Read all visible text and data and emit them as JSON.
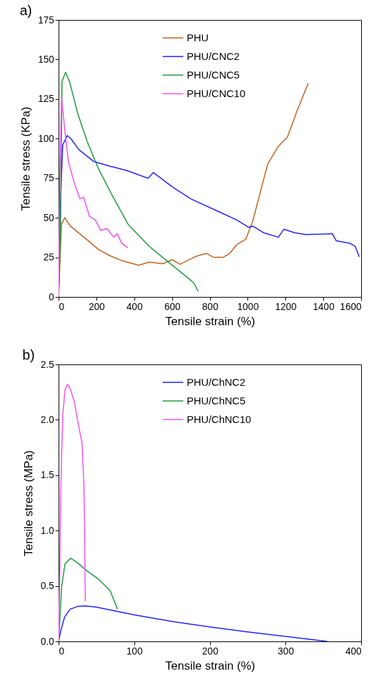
{
  "chart_data": [
    {
      "type": "line",
      "title": "a)",
      "xlabel": "Tensile strain (%)",
      "ylabel": "Tensile stress (KPa)",
      "xlim": [
        0,
        1600
      ],
      "xticks": [
        0,
        200,
        400,
        600,
        800,
        1000,
        1200,
        1400,
        1600
      ],
      "ylim": [
        0,
        175
      ],
      "yticks": [
        0,
        25,
        50,
        75,
        100,
        125,
        150,
        175
      ],
      "grid": false,
      "legend": "top",
      "line_style": "solid",
      "marker": "none",
      "series": [
        {
          "name": "PHU",
          "color": "#c0601c",
          "x": [
            0,
            15,
            33,
            60,
            162,
            211,
            272,
            333,
            424,
            479,
            552,
            601,
            643,
            698,
            735,
            783,
            820,
            869,
            905,
            942,
            990,
            1027,
            1064,
            1106,
            1161,
            1210,
            1247,
            1259,
            1320
          ],
          "values": [
            0,
            46,
            50,
            45,
            35,
            30,
            26,
            23,
            20,
            22,
            21,
            23.5,
            20.6,
            24,
            26,
            27.5,
            25,
            25,
            27.5,
            33,
            36.5,
            48,
            65,
            84,
            95,
            101,
            113,
            117,
            135
          ]
        },
        {
          "name": "PHU/CNC2",
          "color": "#1f1fff",
          "x": [
            0,
            10,
            22,
            46,
            65,
            108,
            187,
            272,
            358,
            473,
            501,
            601,
            699,
            845,
            943,
            1004,
            1028,
            1083,
            1162,
            1192,
            1247,
            1307,
            1448,
            1468,
            1539,
            1569,
            1590
          ],
          "values": [
            0,
            61,
            96,
            102,
            100,
            93,
            85.5,
            82.6,
            80,
            75,
            78.6,
            69.6,
            62,
            54,
            48.6,
            44,
            44.7,
            40.6,
            37.7,
            42.8,
            40.6,
            39.4,
            39.9,
            35.5,
            34,
            31.9,
            25.4
          ]
        },
        {
          "name": "PHU/CNC5",
          "color": "#1a9a3a",
          "x": [
            0,
            10,
            18,
            37,
            58,
            101,
            150,
            211,
            284,
            369,
            479,
            576,
            674,
            716,
            738
          ],
          "values": [
            0,
            39,
            136,
            142,
            136,
            116,
            98.6,
            81,
            64,
            45.7,
            32,
            22.5,
            13,
            8.7,
            3.6
          ]
        },
        {
          "name": "PHU/CNC10",
          "color": "#f050f0",
          "x": [
            0,
            7,
            16,
            34,
            52,
            83,
            113,
            132,
            163,
            194,
            224,
            257,
            291,
            311,
            333,
            367
          ],
          "values": [
            0,
            78,
            126,
            104,
            85.5,
            72,
            62,
            63,
            51,
            48.6,
            42,
            43.2,
            37.7,
            40,
            34,
            31
          ]
        }
      ]
    },
    {
      "type": "line",
      "title": "b)",
      "xlabel": "Tensile strain (%)",
      "ylabel": "Tensile stress (MPa)",
      "xlim": [
        0,
        400
      ],
      "xticks": [
        0,
        100,
        200,
        300,
        400
      ],
      "ylim": [
        0,
        2.5
      ],
      "yticks": [
        {
          "value": 0,
          "label": "0.0"
        },
        {
          "value": 0.5,
          "label": "0.5"
        },
        {
          "value": 1,
          "label": "1.0"
        },
        {
          "value": 1.5,
          "label": "1.5"
        },
        {
          "value": 2,
          "label": "2.0"
        },
        {
          "value": 2.5,
          "label": "2.5"
        }
      ],
      "grid": false,
      "legend": "top",
      "line_style": "solid",
      "marker": "none",
      "series": [
        {
          "name": "PHU/ChNC2",
          "color": "#1f1fff",
          "x": [
            0,
            3,
            8,
            15,
            25,
            35,
            50,
            100,
            150,
            200,
            250,
            300,
            355
          ],
          "values": [
            0,
            0.1,
            0.22,
            0.29,
            0.315,
            0.32,
            0.31,
            0.24,
            0.18,
            0.13,
            0.085,
            0.045,
            0
          ]
        },
        {
          "name": "PHU/ChNC5",
          "color": "#1a9a3a",
          "x": [
            0,
            4,
            8.5,
            16,
            25,
            37,
            53,
            68,
            78
          ],
          "values": [
            0,
            0.49,
            0.7,
            0.75,
            0.71,
            0.64,
            0.56,
            0.46,
            0.29
          ]
        },
        {
          "name": "PHU/ChNC10",
          "color": "#f050f0",
          "x": [
            0,
            1.5,
            3,
            5.5,
            8.5,
            12,
            16,
            21,
            25,
            31,
            33.5,
            34.4,
            35.3
          ],
          "values": [
            0,
            0.59,
            1.42,
            2.04,
            2.27,
            2.32,
            2.27,
            2.16,
            2.0,
            1.79,
            1.42,
            1.0,
            0.36
          ]
        }
      ]
    }
  ]
}
